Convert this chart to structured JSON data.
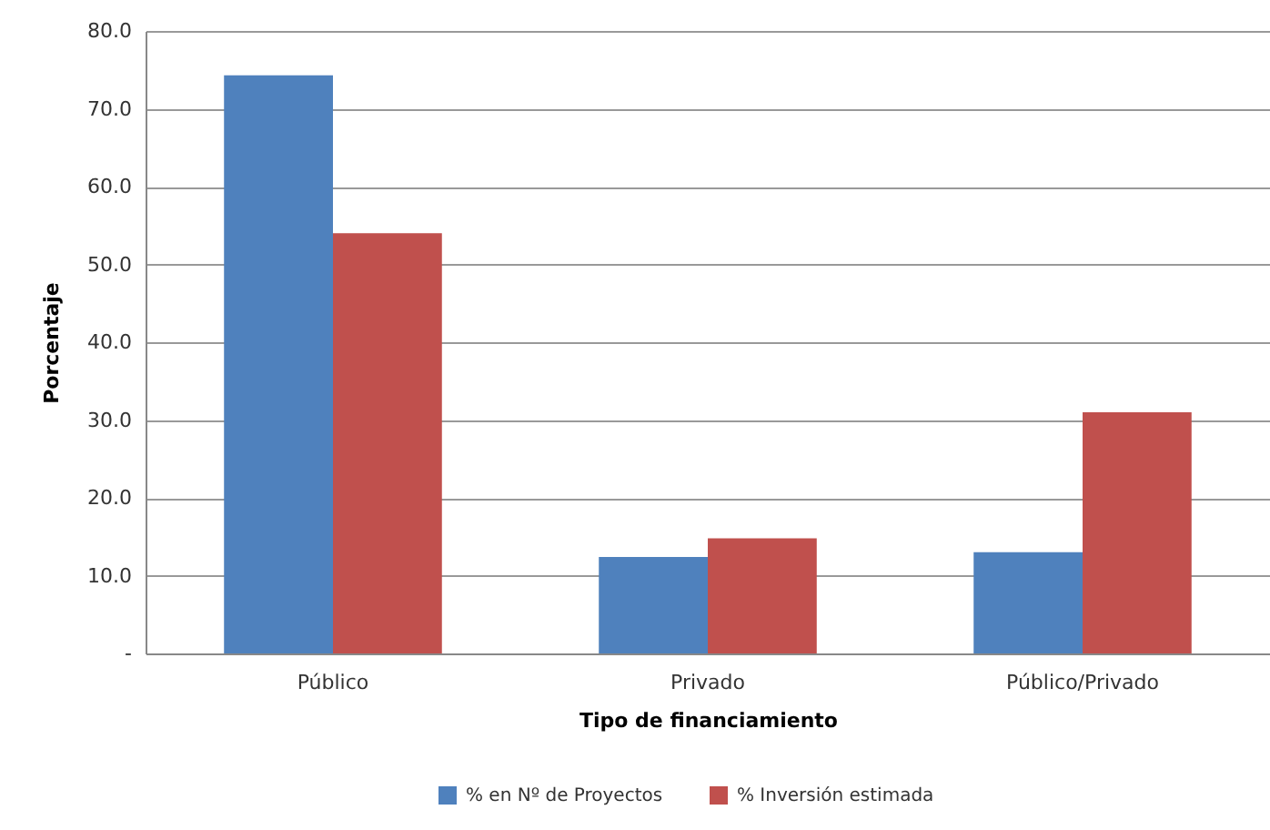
{
  "chart_data": {
    "type": "bar",
    "xlabel": "Tipo de financiamiento",
    "ylabel": "Porcentaje",
    "categories": [
      "Público",
      "Privado",
      "Público/Privado"
    ],
    "series": [
      {
        "name": "% en Nº de Proyectos",
        "color": "#4f81bd",
        "values": [
          74.3,
          12.4,
          13.0
        ]
      },
      {
        "name": "% Inversión estimada",
        "color": "#c0504d",
        "values": [
          54.0,
          14.8,
          31.0
        ]
      }
    ],
    "ylim": [
      0,
      80
    ],
    "yticks": [
      {
        "value": 0,
        "label": "-"
      },
      {
        "value": 10,
        "label": "10.0"
      },
      {
        "value": 20,
        "label": "20.0"
      },
      {
        "value": 30,
        "label": "30.0"
      },
      {
        "value": 40,
        "label": "40.0"
      },
      {
        "value": 50,
        "label": "50.0"
      },
      {
        "value": 60,
        "label": "60.0"
      },
      {
        "value": 70,
        "label": "70.0"
      },
      {
        "value": 80,
        "label": "80.0"
      }
    ],
    "grid": "y",
    "legend": "bottom"
  }
}
